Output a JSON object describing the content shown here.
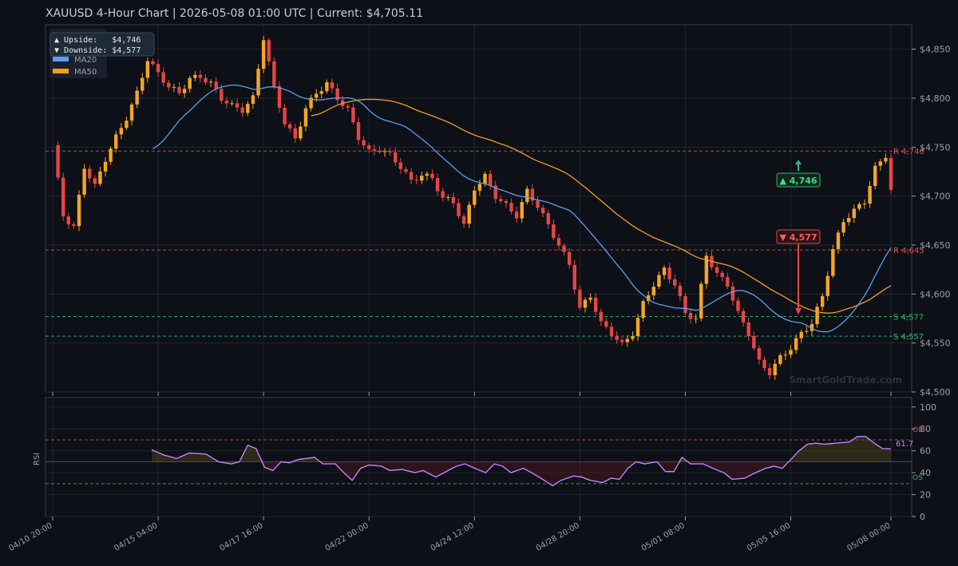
{
  "title": "XAUUSD  4-Hour Chart  |  2026-05-08 01:00 UTC  |  Current: $4,705.11",
  "watermark": "SmartGoldTrade.com",
  "colors": {
    "bg": "#0d1017",
    "panel_border": "#3a3f4b",
    "grid": "#1f2430",
    "text": "#c9ccd3",
    "tick": "#9aa0aa",
    "bull": "#f5a623",
    "bear": "#e84545",
    "ma20": "#5aa0f0",
    "ma50": "#f59e1b",
    "rsi": "#c084fc",
    "support": "#2eb872",
    "resistance": "#d9534f"
  },
  "info_box": {
    "upside": "▲ Upside:   $4,746",
    "downside": "▼ Downside: $4,577"
  },
  "legend": [
    {
      "label": "MA20",
      "color": "#5aa0f0"
    },
    {
      "label": "MA50",
      "color": "#f59e1b"
    }
  ],
  "chart_data": [
    {
      "type": "candlestick",
      "title": "XAUUSD  4-Hour Chart  |  2026-05-08 01:00 UTC  |  Current: $4,705.11",
      "ylim": [
        4500,
        4875
      ],
      "y_ticks": [
        4500,
        4550,
        4600,
        4650,
        4700,
        4750,
        4800,
        4850
      ],
      "y_tick_labels": [
        "$4,500",
        "$4,550",
        "$4,600",
        "$4,650",
        "$4,700",
        "$4,750",
        "$4,800",
        "$4,850"
      ],
      "x_tick_labels": [
        "04/10 20:00",
        "04/15 04:00",
        "04/17 16:00",
        "04/22 00:00",
        "04/24 12:00",
        "04/28 20:00",
        "05/01 08:00",
        "05/05 16:00",
        "05/08 00:00"
      ],
      "x_tick_index": [
        0,
        20,
        40,
        60,
        80,
        100,
        120,
        140,
        159
      ],
      "grid": true,
      "legend_position": "top-left",
      "levels": [
        {
          "label": "R 4,746",
          "value": 4746,
          "kind": "resistance"
        },
        {
          "label": "R 4,645",
          "value": 4645,
          "kind": "resistance"
        },
        {
          "label": "S 4,577",
          "value": 4577,
          "kind": "support"
        },
        {
          "label": "S 4,557",
          "value": 4557,
          "kind": "support"
        }
      ],
      "annotations": [
        {
          "label": "▲ 4,746",
          "kind": "upside",
          "value": 4746
        },
        {
          "label": "▼ 4,577",
          "kind": "downside",
          "value": 4577
        }
      ]
    },
    {
      "type": "line",
      "ylabel": "RSI",
      "ylim": [
        0,
        100
      ],
      "y_ticks": [
        0,
        20,
        40,
        60,
        80,
        100
      ],
      "levels": [
        {
          "label": "OB",
          "value": 70
        },
        {
          "label": "OS",
          "value": 30
        }
      ],
      "last_value_label": "61.7"
    }
  ]
}
